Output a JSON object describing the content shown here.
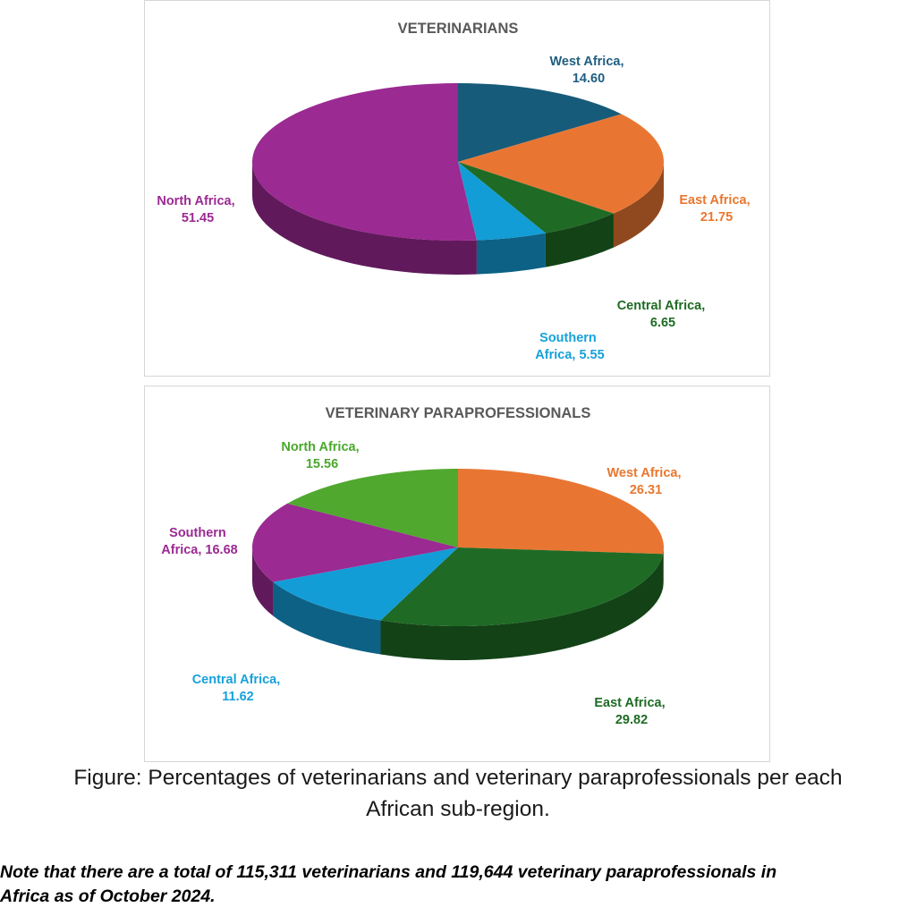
{
  "chart_data": [
    {
      "type": "pie",
      "title": "VETERINARIANS",
      "slices": [
        {
          "label_lines": [
            "West Africa,",
            "14.60"
          ],
          "value": 14.6,
          "color": "#175b7a",
          "label_color": "#1f5e80"
        },
        {
          "label_lines": [
            "East Africa,",
            "21.75"
          ],
          "value": 21.75,
          "color": "#e87632",
          "label_color": "#e8772f"
        },
        {
          "label_lines": [
            "Central Africa,",
            "6.65"
          ],
          "value": 6.65,
          "color": "#1f6b25",
          "label_color": "#1e6b24"
        },
        {
          "label_lines": [
            "Southern",
            "Africa, 5.55"
          ],
          "value": 5.55,
          "color": "#139dd6",
          "label_color": "#17a1da"
        },
        {
          "label_lines": [
            "North Africa,",
            "51.45"
          ],
          "value": 51.45,
          "color": "#9b2a92",
          "label_color": "#9b2a92"
        }
      ]
    },
    {
      "type": "pie",
      "title": "VETERINARY PARAPROFESSIONALS",
      "slices": [
        {
          "label_lines": [
            "West Africa,",
            "26.31"
          ],
          "value": 26.31,
          "color": "#e87632",
          "label_color": "#e8772f"
        },
        {
          "label_lines": [
            "East Africa,",
            "29.82"
          ],
          "value": 29.82,
          "color": "#1f6b25",
          "label_color": "#1e6b24"
        },
        {
          "label_lines": [
            "Central Africa,",
            "11.62"
          ],
          "value": 11.62,
          "color": "#139dd6",
          "label_color": "#17a1da"
        },
        {
          "label_lines": [
            "Southern",
            "Africa, 16.68"
          ],
          "value": 16.68,
          "color": "#9b2a92",
          "label_color": "#9b2a92"
        },
        {
          "label_lines": [
            "North Africa,",
            "15.56"
          ],
          "value": 15.56,
          "color": "#50a82f",
          "label_color": "#4aa82d"
        }
      ]
    }
  ],
  "caption": {
    "line1": "Figure: Percentages of veterinarians and veterinary paraprofessionals per each",
    "line2": "African sub-region."
  },
  "note": {
    "line1": "Note that there are a total of 115,311 veterinarians and 119,644 veterinary paraprofessionals in",
    "line2": "Africa as of October 2024."
  }
}
